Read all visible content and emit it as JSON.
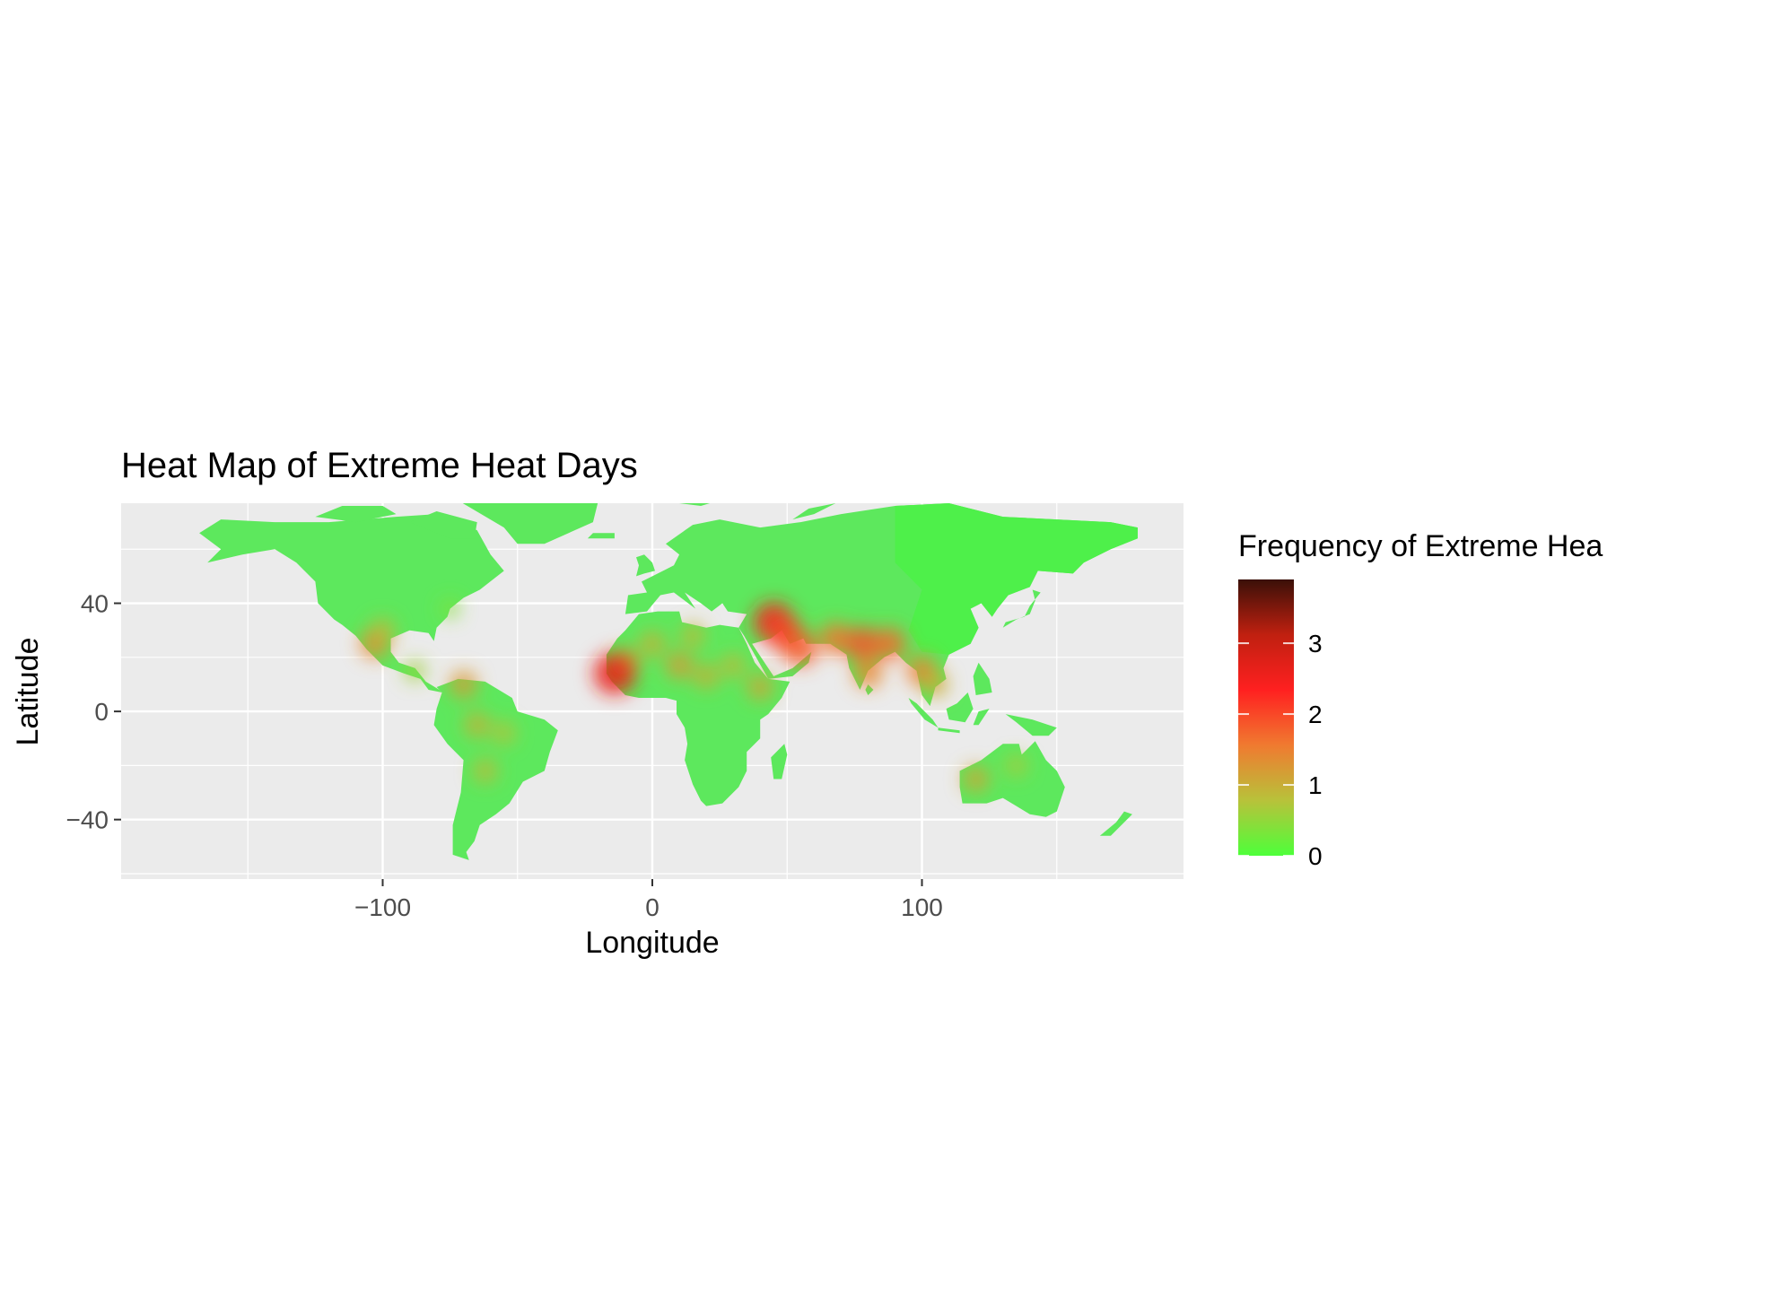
{
  "chart_data": {
    "type": "heatmap",
    "title": "Heat Map of Extreme Heat Days",
    "xlabel": "Longitude",
    "ylabel": "Latitude",
    "x_ticks": [
      -100,
      0,
      100
    ],
    "x_tick_labels": [
      "−100",
      "0",
      "100"
    ],
    "y_ticks": [
      40,
      0,
      -40
    ],
    "y_tick_labels": [
      "40",
      "0",
      "−40"
    ],
    "xlim": [
      -197,
      197
    ],
    "ylim": [
      -62,
      77
    ],
    "grid": true,
    "legend": {
      "title": "Frequency of Extreme Hea",
      "placement": "right",
      "ticks": [
        3,
        2,
        1,
        0
      ],
      "tick_labels": [
        "3",
        "2",
        "1",
        "0"
      ],
      "range": [
        0,
        3.9
      ],
      "colors": [
        "#4dff3a",
        "#b8c23a",
        "#f07a30",
        "#ff2020",
        "#c02010",
        "#3a1008"
      ]
    },
    "colors": {
      "panel_background": "#ebebeb",
      "gridline": "#ffffff",
      "land_base": "#5de85d",
      "land_asia": "#4ef04a"
    },
    "hotspots": [
      {
        "lon": -103,
        "lat": 25,
        "value": 1.4
      },
      {
        "lon": -100,
        "lat": 30,
        "value": 0.9
      },
      {
        "lon": -88,
        "lat": 15,
        "value": 0.6
      },
      {
        "lon": -70,
        "lat": 10,
        "value": 1.2
      },
      {
        "lon": -65,
        "lat": -5,
        "value": 1.0
      },
      {
        "lon": -55,
        "lat": -8,
        "value": 0.8
      },
      {
        "lon": -62,
        "lat": -22,
        "value": 0.9
      },
      {
        "lon": -10,
        "lat": 18,
        "value": 1.3
      },
      {
        "lon": -14,
        "lat": 14,
        "value": 2.6
      },
      {
        "lon": 0,
        "lat": 25,
        "value": 1.0
      },
      {
        "lon": 10,
        "lat": 17,
        "value": 1.2
      },
      {
        "lon": 20,
        "lat": 13,
        "value": 1.0
      },
      {
        "lon": 30,
        "lat": 17,
        "value": 0.9
      },
      {
        "lon": 15,
        "lat": 28,
        "value": 0.9
      },
      {
        "lon": 40,
        "lat": 9,
        "value": 1.1
      },
      {
        "lon": 45,
        "lat": 33,
        "value": 2.4
      },
      {
        "lon": 50,
        "lat": 28,
        "value": 2.0
      },
      {
        "lon": 55,
        "lat": 23,
        "value": 1.8
      },
      {
        "lon": 68,
        "lat": 27,
        "value": 1.6
      },
      {
        "lon": 78,
        "lat": 25,
        "value": 1.9
      },
      {
        "lon": 88,
        "lat": 25,
        "value": 1.7
      },
      {
        "lon": 80,
        "lat": 14,
        "value": 1.4
      },
      {
        "lon": 100,
        "lat": 15,
        "value": 1.5
      },
      {
        "lon": 105,
        "lat": 10,
        "value": 1.0
      },
      {
        "lon": 120,
        "lat": -25,
        "value": 1.1
      },
      {
        "lon": 135,
        "lat": -20,
        "value": 0.7
      },
      {
        "lon": -75,
        "lat": 38,
        "value": 0.4
      }
    ]
  }
}
